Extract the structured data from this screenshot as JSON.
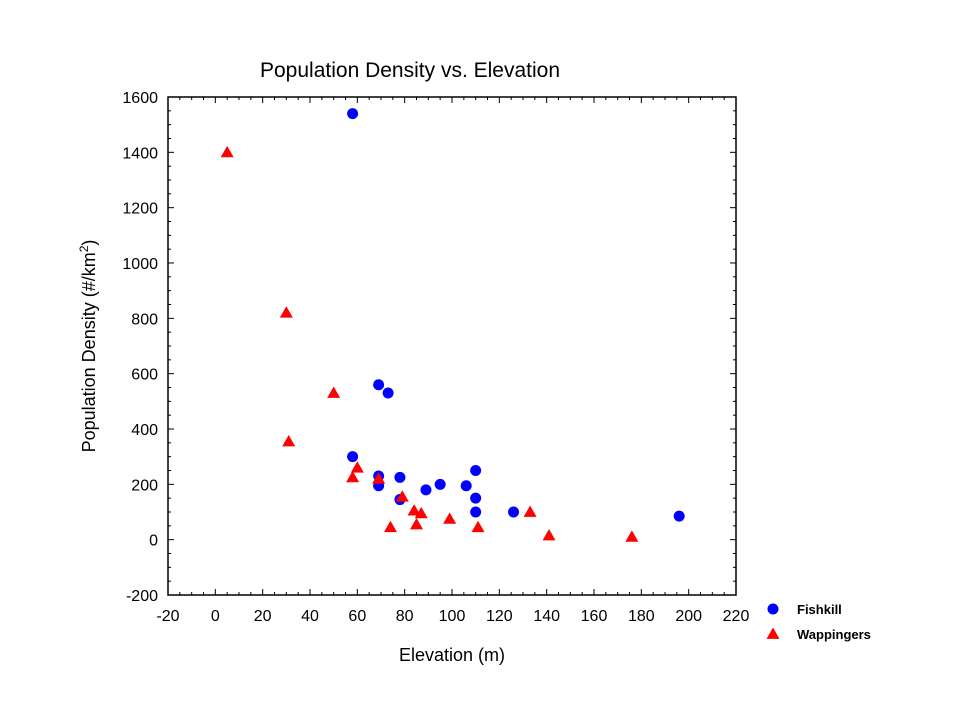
{
  "chart_data": {
    "type": "scatter",
    "title": "Population Density vs. Elevation",
    "xlabel": "Elevation (m)",
    "ylabel_main": "Population Density (#/km",
    "ylabel_sup": "2",
    "ylabel_end": ")",
    "xlim": [
      -20,
      220
    ],
    "ylim": [
      -200,
      1600
    ],
    "xticks": [
      -20,
      0,
      20,
      40,
      60,
      80,
      100,
      120,
      140,
      160,
      180,
      200,
      220
    ],
    "yticks": [
      -200,
      0,
      200,
      400,
      600,
      800,
      1000,
      1200,
      1400,
      1600
    ],
    "grid": false,
    "legend_position": "bottom-right-outside",
    "series": [
      {
        "name": "Fishkill",
        "marker": "circle",
        "color": "#0000ff",
        "points": [
          [
            58,
            1540
          ],
          [
            69,
            560
          ],
          [
            73,
            530
          ],
          [
            58,
            300
          ],
          [
            69,
            230
          ],
          [
            69,
            195
          ],
          [
            78,
            225
          ],
          [
            78,
            145
          ],
          [
            89,
            180
          ],
          [
            95,
            200
          ],
          [
            106,
            195
          ],
          [
            110,
            250
          ],
          [
            110,
            150
          ],
          [
            110,
            100
          ],
          [
            126,
            100
          ],
          [
            196,
            85
          ]
        ]
      },
      {
        "name": "Wappingers",
        "marker": "triangle",
        "color": "#ff0000",
        "points": [
          [
            5,
            1400
          ],
          [
            30,
            820
          ],
          [
            31,
            355
          ],
          [
            50,
            530
          ],
          [
            60,
            260
          ],
          [
            58,
            225
          ],
          [
            69,
            220
          ],
          [
            79,
            155
          ],
          [
            74,
            45
          ],
          [
            84,
            105
          ],
          [
            85,
            55
          ],
          [
            87,
            95
          ],
          [
            99,
            75
          ],
          [
            111,
            45
          ],
          [
            133,
            100
          ],
          [
            141,
            15
          ],
          [
            176,
            10
          ]
        ]
      }
    ]
  }
}
